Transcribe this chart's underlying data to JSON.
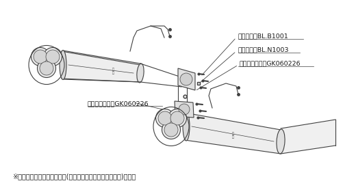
{
  "bg_color": "#ffffff",
  "line_color": "#404040",
  "text_color": "#1a1a1a",
  "label_bolt": "（ボルト）BL.B1001",
  "label_nut": "（ナット）BL.N1003",
  "label_gasket_upper": "（ガスケット）GK060226",
  "label_gasket_lower": "（ガスケット）GK060226",
  "footnote": "※テール部はチタンフェイス(青いグラデーションの焼き色)です．",
  "footnote_size": 7.0,
  "label_size": 6.8,
  "fig_width": 5.01,
  "fig_height": 2.81,
  "dpi": 100
}
